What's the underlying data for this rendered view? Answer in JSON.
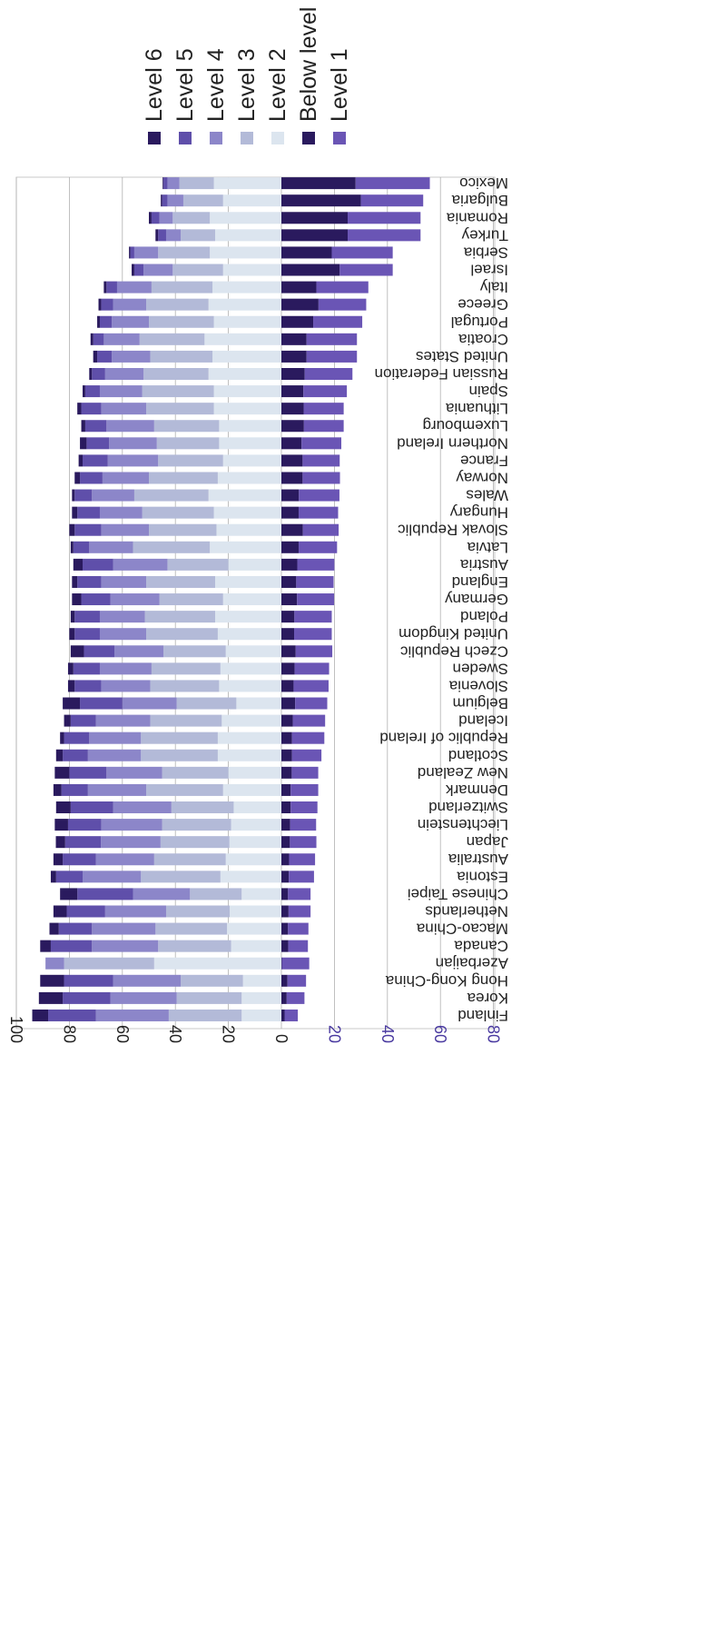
{
  "chart_data": {
    "type": "bar",
    "orientation": "horizontal-stacked-diverging",
    "title": "",
    "xlabel": "",
    "ylabel": "",
    "xlim": [
      -100,
      80
    ],
    "x_ticks_top": [
      100,
      80,
      60,
      40,
      20,
      0
    ],
    "x_ticks_bottom": [
      20,
      40,
      60,
      80
    ],
    "grid": true,
    "legend_position": "top",
    "categories": [
      "Finland",
      "Korea",
      "Hong Kong-China",
      "Azerbaijan",
      "Canada",
      "Macao-China",
      "Netherlands",
      "Chinese Taipei",
      "Estonia",
      "Australia",
      "Japan",
      "Liechtenstein",
      "Switzerland",
      "Denmark",
      "New Zealand",
      "Scotland",
      "Republic of Ireland",
      "Iceland",
      "Belgium",
      "Slovenia",
      "Sweden",
      "Czech Republic",
      "United Kingdom",
      "Poland",
      "Germany",
      "England",
      "Austria",
      "Latvia",
      "Slovak Republic",
      "Hungary",
      "Wales",
      "Norway",
      "France",
      "Northern Ireland",
      "Luxembourg",
      "Lithuania",
      "Spain",
      "Russian Federation",
      "United States",
      "Croatia",
      "Portugal",
      "Greece",
      "Italy",
      "Israel",
      "Serbia",
      "Turkey",
      "Romania",
      "Bulgaria",
      "Mexico"
    ],
    "series": [
      {
        "name": "Below level 1",
        "side": "negative",
        "color": "#2a1a5e",
        "values": [
          1.2,
          2.0,
          2.3,
          0.2,
          2.6,
          2.5,
          2.7,
          2.5,
          2.8,
          2.9,
          3.2,
          3.3,
          3.5,
          3.5,
          3.9,
          4.0,
          4.0,
          4.3,
          5.2,
          4.6,
          5.0,
          5.4,
          4.8,
          4.9,
          5.9,
          5.6,
          6.0,
          6.5,
          8.1,
          6.5,
          6.6,
          8.0,
          8.0,
          7.6,
          8.5,
          8.4,
          8.3,
          8.8,
          9.5,
          9.5,
          12.0,
          14.0,
          13.2,
          22.0,
          19.0,
          25.0,
          25.0,
          30.0,
          28.0
        ]
      },
      {
        "name": "Level 1",
        "side": "negative",
        "color": "#6a55b5",
        "values": [
          5.0,
          6.7,
          7.0,
          10.3,
          7.4,
          7.7,
          8.3,
          8.5,
          9.5,
          9.8,
          10.0,
          9.8,
          10.1,
          10.4,
          10.0,
          11.1,
          12.2,
          12.2,
          12.1,
          13.2,
          13.0,
          13.8,
          14.2,
          14.1,
          14.0,
          14.1,
          14.0,
          14.5,
          13.5,
          14.9,
          15.3,
          14.1,
          14.0,
          15.0,
          15.0,
          15.1,
          16.4,
          18.0,
          19.0,
          19.0,
          18.5,
          18.0,
          19.6,
          20.0,
          23.0,
          27.5,
          27.5,
          23.5,
          28.0
        ]
      },
      {
        "name": "Level 2",
        "side": "positive",
        "color": "#dce5ef",
        "values": [
          15.0,
          15.0,
          14.5,
          48.0,
          19.0,
          20.5,
          19.5,
          15.0,
          23.0,
          21.0,
          19.6,
          19.0,
          18.0,
          22.0,
          20.0,
          24.0,
          24.0,
          22.5,
          17.0,
          23.5,
          23.0,
          21.0,
          24.0,
          25.0,
          22.0,
          25.0,
          20.0,
          27.0,
          24.5,
          25.5,
          27.5,
          24.0,
          22.0,
          23.5,
          23.5,
          25.5,
          25.5,
          27.5,
          26.0,
          29.0,
          25.5,
          27.5,
          26.0,
          22.0,
          27.0,
          25.0,
          27.0,
          22.0,
          25.5
        ]
      },
      {
        "name": "Level 3",
        "side": "positive",
        "color": "#b3bad8",
        "values": [
          27.5,
          24.5,
          23.5,
          34.0,
          27.5,
          27.0,
          24.0,
          19.5,
          30.0,
          27.0,
          26.0,
          26.0,
          23.5,
          29.0,
          25.0,
          29.0,
          29.0,
          27.0,
          22.5,
          26.0,
          26.0,
          23.5,
          27.0,
          26.5,
          24.0,
          26.0,
          23.0,
          29.0,
          25.5,
          27.0,
          28.0,
          26.0,
          24.5,
          23.5,
          24.5,
          25.5,
          27.0,
          24.5,
          23.5,
          24.5,
          24.5,
          23.5,
          23.0,
          19.0,
          19.5,
          13.0,
          14.0,
          15.0,
          13.0
        ]
      },
      {
        "name": "Level 4",
        "side": "positive",
        "color": "#8c86c9",
        "values": [
          27.5,
          25.0,
          25.5,
          7.0,
          25.0,
          24.0,
          23.0,
          21.5,
          22.0,
          22.0,
          22.5,
          23.0,
          22.0,
          22.0,
          21.0,
          20.0,
          19.5,
          20.5,
          20.5,
          18.5,
          19.5,
          18.5,
          17.5,
          17.0,
          18.5,
          17.0,
          20.5,
          16.5,
          18.0,
          16.0,
          16.0,
          17.5,
          19.0,
          18.0,
          18.0,
          17.0,
          16.0,
          14.5,
          14.5,
          13.5,
          14.0,
          12.5,
          13.0,
          11.0,
          9.0,
          5.5,
          5.0,
          6.0,
          4.5
        ]
      },
      {
        "name": "Level 5",
        "side": "positive",
        "color": "#5f4faa",
        "values": [
          18.0,
          18.0,
          18.5,
          0.0,
          15.5,
          12.5,
          14.5,
          21.0,
          10.0,
          12.5,
          13.5,
          12.5,
          16.0,
          10.0,
          14.0,
          9.5,
          9.5,
          9.5,
          16.0,
          10.0,
          10.0,
          11.5,
          9.5,
          9.5,
          11.0,
          9.0,
          11.5,
          6.0,
          10.0,
          8.5,
          6.5,
          8.5,
          9.5,
          8.5,
          8.0,
          7.5,
          5.5,
          5.0,
          5.5,
          4.0,
          4.5,
          4.5,
          4.0,
          3.5,
          1.5,
          3.0,
          3.0,
          2.0,
          1.5
        ]
      },
      {
        "name": "Level 6",
        "side": "positive",
        "color": "#2a1a5e",
        "values": [
          6.0,
          9.0,
          9.0,
          0.0,
          4.0,
          3.5,
          5.0,
          6.5,
          2.0,
          3.5,
          3.5,
          5.0,
          5.5,
          3.0,
          5.5,
          2.5,
          1.5,
          2.5,
          6.5,
          2.5,
          2.0,
          5.0,
          2.0,
          1.5,
          3.5,
          2.0,
          3.5,
          1.0,
          2.0,
          2.0,
          1.0,
          2.0,
          1.5,
          2.5,
          1.5,
          1.5,
          1.0,
          1.0,
          1.5,
          1.0,
          1.0,
          1.0,
          1.0,
          1.0,
          0.5,
          1.0,
          1.0,
          0.5,
          0.3
        ]
      }
    ],
    "legend": [
      {
        "label": "Level 6",
        "color": "#2a1a5e"
      },
      {
        "label": "Level 5",
        "color": "#5f4faa"
      },
      {
        "label": "Level 4",
        "color": "#8c86c9"
      },
      {
        "label": "Level 3",
        "color": "#b3bad8"
      },
      {
        "label": "Level 2",
        "color": "#dce5ef"
      },
      {
        "label": "Below level 1",
        "color": "#2a1a5e"
      },
      {
        "label": "Level 1",
        "color": "#6a55b5"
      }
    ],
    "colors": {
      "axis_top_labels": "#222222",
      "axis_bottom_labels": "#4a3aa0",
      "grid": "#b0b0b0"
    }
  }
}
